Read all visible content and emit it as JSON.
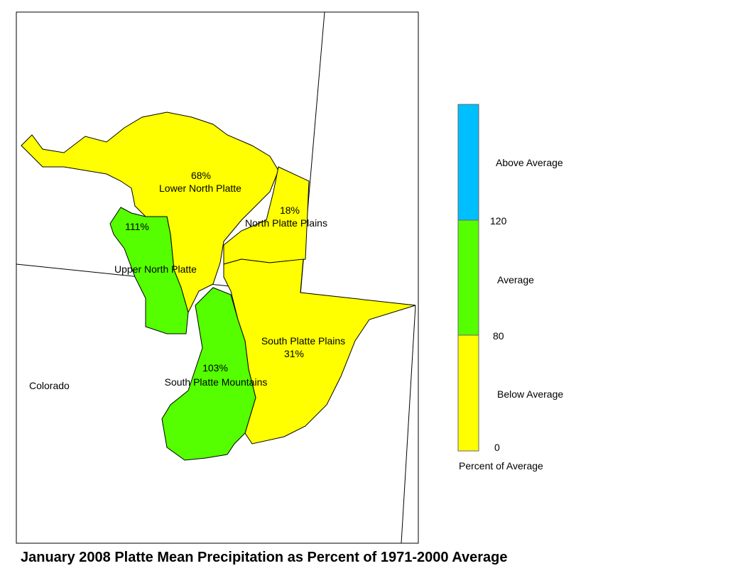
{
  "title": "January 2008 Platte Mean Precipitation as Percent of 1971-2000 Average",
  "state_label": "Colorado",
  "regions": [
    {
      "name": "Lower North Platte",
      "value_label": "68%",
      "color": "#ffff00"
    },
    {
      "name": "North Platte Plains",
      "value_label": "18%",
      "color": "#ffff00"
    },
    {
      "name": "South Platte Plains",
      "value_label": "31%",
      "color": "#ffff00"
    },
    {
      "name": "Upper North Platte",
      "value_label": "111%",
      "color": "#55ff00"
    },
    {
      "name": "South Platte Mountains",
      "value_label": "103%",
      "color": "#55ff00"
    }
  ],
  "legend": {
    "title": "Percent of Average",
    "classes": [
      {
        "label": "Above Average",
        "color": "#00bfff"
      },
      {
        "label": "Average",
        "color": "#55ff00"
      },
      {
        "label": "Below Average",
        "color": "#ffff00"
      }
    ],
    "ticks": [
      "120",
      "80",
      "0"
    ]
  }
}
